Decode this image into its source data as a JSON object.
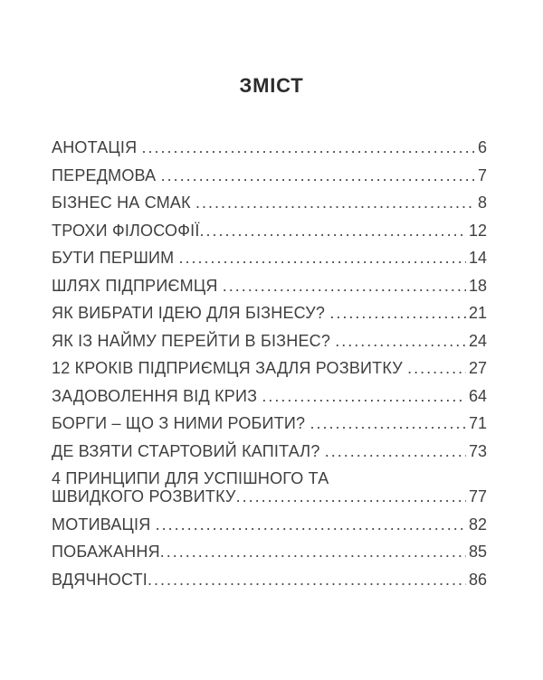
{
  "document": {
    "title": "ЗМІСТ",
    "colors": {
      "background": "#ffffff",
      "title_text": "#2c2c2c",
      "body_text": "#3f3f3f"
    },
    "toc": {
      "entries": [
        {
          "lines": [
            "АНОТАЦІЯ "
          ],
          "page": "6"
        },
        {
          "lines": [
            "ПЕРЕДМОВА "
          ],
          "page": "7"
        },
        {
          "lines": [
            "БІЗНЕС НА СМАК "
          ],
          "page": "8"
        },
        {
          "lines": [
            "ТРОХИ ФІЛОСОФІЇ"
          ],
          "page": "12"
        },
        {
          "lines": [
            "БУТИ ПЕРШИМ "
          ],
          "page": "14"
        },
        {
          "lines": [
            "ШЛЯХ ПІДПРИЄМЦЯ "
          ],
          "page": "18"
        },
        {
          "lines": [
            "ЯК ВИБРАТИ ІДЕЮ ДЛЯ БІЗНЕСУ? "
          ],
          "page": "21"
        },
        {
          "lines": [
            "ЯК ІЗ НАЙМУ ПЕРЕЙТИ В БІЗНЕС? "
          ],
          "page": "24"
        },
        {
          "lines": [
            "12 КРОКІВ ПІДПРИЄМЦЯ ЗАДЛЯ РОЗВИТКУ "
          ],
          "page": "27"
        },
        {
          "lines": [
            "ЗАДОВОЛЕННЯ ВІД КРИЗ "
          ],
          "page": "64"
        },
        {
          "lines": [
            "БОРГИ – ЩО З НИМИ РОБИТИ? "
          ],
          "page": "71"
        },
        {
          "lines": [
            "ДЕ ВЗЯТИ СТАРТОВИЙ КАПІТАЛ? "
          ],
          "page": "73"
        },
        {
          "lines": [
            "4 ПРИНЦИПИ ДЛЯ УСПІШНОГО ТА",
            "ШВИДКОГО РОЗВИТКУ"
          ],
          "page": "77"
        },
        {
          "lines": [
            "МОТИВАЦІЯ "
          ],
          "page": "82"
        },
        {
          "lines": [
            "ПОБАЖАННЯ"
          ],
          "page": "85"
        },
        {
          "lines": [
            "ВДЯЧНОСТІ"
          ],
          "page": "86"
        }
      ]
    }
  }
}
